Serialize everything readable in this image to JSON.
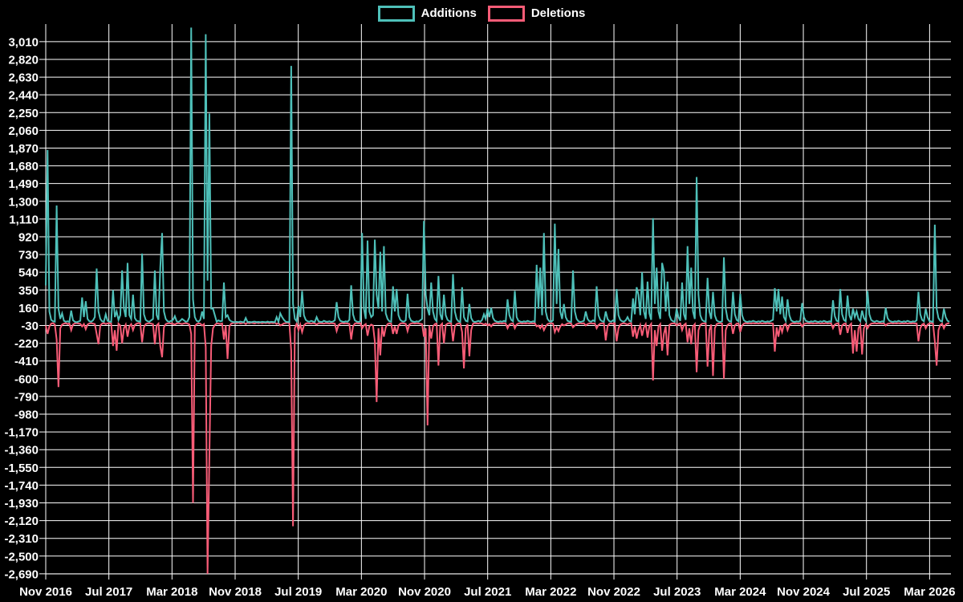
{
  "page": {
    "background": "#000000",
    "grid_color": "#ffffff",
    "text_color": "#ffffff"
  },
  "legend": {
    "items": [
      {
        "label": "Additions",
        "color": "#4ec0b9"
      },
      {
        "label": "Deletions",
        "color": "#f85c77"
      }
    ]
  },
  "chart_data": {
    "type": "line",
    "title": "",
    "xlabel": "",
    "ylabel": "",
    "x_range": [
      "Nov 2016",
      "Mar 2026"
    ],
    "x_resolution": "weekly",
    "ylim": [
      -2690,
      3160
    ],
    "grid": true,
    "legend_position": "top-center",
    "x_tick_labels": [
      "Nov 2016",
      "Jul 2017",
      "Mar 2018",
      "Nov 2018",
      "Jul 2019",
      "Mar 2020",
      "Nov 2020",
      "Jul 2021",
      "Mar 2022",
      "Nov 2022",
      "Jul 2023",
      "Mar 2024",
      "Nov 2024",
      "Jul 2025",
      "Mar 2026"
    ],
    "y_ticks": [
      3010,
      2820,
      2630,
      2440,
      2250,
      2060,
      1870,
      1680,
      1490,
      1300,
      1110,
      920,
      730,
      540,
      350,
      160,
      -30,
      -220,
      -410,
      -600,
      -790,
      -980,
      -1170,
      -1360,
      -1550,
      -1740,
      -1930,
      -2120,
      -2310,
      -2500,
      -2690
    ],
    "y_tick_labels": [
      "3,010",
      "2,820",
      "2,630",
      "2,440",
      "2,250",
      "2,060",
      "1,870",
      "1,680",
      "1,490",
      "1,300",
      "1,110",
      "920",
      "730",
      "540",
      "350",
      "160",
      "-30",
      "-220",
      "-410",
      "-600",
      "-790",
      "-980",
      "-1,170",
      "-1,360",
      "-1,550",
      "-1,740",
      "-1,930",
      "-2,120",
      "-2,310",
      "-2,500",
      "-2,690"
    ],
    "series": [
      {
        "name": "Additions",
        "color": "#4ec0b9",
        "values": [
          400,
          1850,
          120,
          30,
          15,
          10,
          1255,
          150,
          40,
          100,
          20,
          10,
          15,
          8,
          130,
          25,
          10,
          5,
          12,
          20,
          270,
          60,
          230,
          40,
          15,
          10,
          25,
          60,
          580,
          120,
          40,
          15,
          10,
          90,
          20,
          12,
          8,
          350,
          60,
          120,
          30,
          80,
          560,
          150,
          60,
          640,
          80,
          40,
          300,
          50,
          20,
          15,
          10,
          740,
          90,
          30,
          15,
          10,
          25,
          40,
          560,
          80,
          30,
          590,
          960,
          120,
          40,
          15,
          10,
          20,
          30,
          70,
          15,
          8,
          20,
          40,
          25,
          10,
          15,
          60,
          3160,
          250,
          60,
          20,
          10,
          30,
          120,
          40,
          3090,
          450,
          2240,
          150,
          150,
          80,
          10,
          25,
          15,
          20,
          430,
          60,
          80,
          30,
          15,
          8,
          5,
          10,
          6,
          12,
          8,
          5,
          50,
          6,
          8,
          5,
          10,
          12,
          6,
          8,
          5,
          10,
          8,
          5,
          12,
          6,
          10,
          8,
          5,
          60,
          10,
          100,
          60,
          30,
          10,
          8,
          6,
          2750,
          200,
          40,
          15,
          180,
          60,
          340,
          80,
          30,
          15,
          10,
          20,
          12,
          8,
          60,
          15,
          10,
          8,
          20,
          12,
          10,
          15,
          8,
          12,
          25,
          220,
          60,
          20,
          12,
          8,
          15,
          10,
          30,
          400,
          90,
          25,
          12,
          8,
          15,
          960,
          150,
          40,
          880,
          120,
          60,
          80,
          890,
          300,
          150,
          760,
          120,
          820,
          100,
          40,
          15,
          10,
          390,
          120,
          360,
          80,
          30,
          15,
          10,
          25,
          310,
          60,
          20,
          12,
          8,
          15,
          10,
          25,
          40,
          1090,
          300,
          150,
          80,
          430,
          120,
          40,
          15,
          500,
          90,
          30,
          300,
          80,
          30,
          15,
          10,
          520,
          120,
          40,
          15,
          8,
          380,
          60,
          20,
          12,
          200,
          50,
          15,
          8,
          12,
          20,
          10,
          30,
          90,
          40,
          150,
          60,
          160,
          50,
          20,
          12,
          8,
          15,
          10,
          20,
          12,
          250,
          80,
          30,
          15,
          340,
          60,
          20,
          12,
          8,
          15,
          10,
          20,
          12,
          8,
          15,
          10,
          620,
          150,
          590,
          80,
          960,
          120,
          40,
          15,
          10,
          25,
          1060,
          200,
          790,
          120,
          40,
          200,
          60,
          20,
          12,
          8,
          560,
          120,
          40,
          15,
          8,
          12,
          20,
          120,
          40,
          15,
          10,
          25,
          15,
          390,
          80,
          30,
          15,
          10,
          120,
          40,
          15,
          10,
          25,
          15,
          360,
          80,
          30,
          15,
          10,
          25,
          60,
          20,
          12,
          260,
          90,
          380,
          300,
          80,
          540,
          120,
          40,
          440,
          100,
          30,
          1120,
          200,
          590,
          120,
          40,
          640,
          550,
          120,
          440,
          80,
          30,
          15,
          10,
          150,
          60,
          20,
          430,
          90,
          30,
          820,
          200,
          590,
          120,
          40,
          1560,
          300,
          80,
          30,
          15,
          10,
          480,
          120,
          40,
          330,
          80,
          25,
          12,
          8,
          15,
          700,
          150,
          40,
          15,
          10,
          330,
          90,
          30,
          15,
          310,
          80,
          25,
          12,
          8,
          15,
          10,
          20,
          12,
          8,
          15,
          10,
          20,
          12,
          8,
          15,
          10,
          20,
          30,
          370,
          120,
          360,
          90,
          280,
          60,
          20,
          250,
          80,
          25,
          12,
          8,
          15,
          10,
          20,
          210,
          60,
          20,
          12,
          8,
          15,
          10,
          20,
          12,
          8,
          15,
          10,
          20,
          12,
          8,
          15,
          10,
          240,
          70,
          20,
          12,
          360,
          90,
          30,
          15,
          290,
          80,
          25,
          150,
          60,
          120,
          40,
          15,
          130,
          50,
          20,
          340,
          90,
          30,
          15,
          10,
          20,
          12,
          8,
          15,
          10,
          160,
          50,
          20,
          12,
          8,
          15,
          10,
          20,
          12,
          8,
          15,
          10,
          20,
          12,
          8,
          15,
          10,
          25,
          330,
          90,
          30,
          15,
          150,
          60,
          20,
          12,
          8,
          1050,
          150,
          50,
          20,
          12,
          150,
          60,
          20,
          10
        ]
      },
      {
        "name": "Deletions",
        "color": "#f85c77",
        "values": [
          -30,
          -120,
          -40,
          -10,
          -5,
          -20,
          -180,
          -690,
          -60,
          -20,
          -10,
          -5,
          -15,
          -8,
          -80,
          -20,
          -8,
          -5,
          -10,
          -12,
          -40,
          -15,
          -70,
          -20,
          -8,
          -5,
          -10,
          -15,
          -120,
          -230,
          -30,
          -10,
          -5,
          -15,
          -8,
          -5,
          -10,
          -250,
          -80,
          -300,
          -10,
          -30,
          -220,
          -60,
          -20,
          -150,
          -40,
          -15,
          -80,
          -25,
          -10,
          -5,
          -8,
          -210,
          -50,
          -15,
          -8,
          -5,
          -10,
          -15,
          -230,
          -30,
          -10,
          -250,
          -370,
          -50,
          -15,
          -8,
          -5,
          -10,
          -12,
          -20,
          -8,
          -5,
          -10,
          -15,
          -8,
          -5,
          -10,
          -20,
          -120,
          -1930,
          -40,
          -15,
          -8,
          -10,
          -30,
          -15,
          -260,
          -2690,
          -1430,
          -250,
          -60,
          -25,
          -8,
          -10,
          -15,
          -8,
          -180,
          -30,
          -390,
          -40,
          -10,
          -5,
          0,
          -6,
          0,
          -8,
          -4,
          0,
          -15,
          0,
          -6,
          0,
          -4,
          -8,
          0,
          -5,
          0,
          -6,
          0,
          -4,
          0,
          -6,
          0,
          -5,
          0,
          -15,
          -4,
          -30,
          -20,
          -8,
          -5,
          0,
          -6,
          -300,
          -2180,
          -60,
          -10,
          -80,
          -20,
          -100,
          -30,
          -10,
          -5,
          -8,
          -10,
          -5,
          -8,
          -20,
          -6,
          -5,
          -8,
          -10,
          -5,
          -6,
          -10,
          -5,
          -8,
          -10,
          -90,
          -25,
          -10,
          -5,
          -8,
          -6,
          -10,
          -12,
          -180,
          -40,
          -10,
          -5,
          -8,
          -6,
          -60,
          -30,
          -15,
          -140,
          -40,
          -20,
          -30,
          -200,
          -850,
          -60,
          -350,
          -40,
          -150,
          -50,
          -15,
          -8,
          -10,
          -120,
          -40,
          -120,
          -30,
          -10,
          -5,
          -8,
          -12,
          -90,
          -20,
          -8,
          -5,
          -10,
          -6,
          -8,
          -12,
          -15,
          -150,
          -60,
          -1100,
          -30,
          -170,
          -40,
          -15,
          -8,
          -460,
          -30,
          -10,
          -220,
          -25,
          -10,
          -5,
          -8,
          -200,
          -40,
          -15,
          -8,
          -5,
          -100,
          -490,
          -60,
          -15,
          -360,
          -80,
          -10,
          -5,
          -8,
          -10,
          -5,
          -10,
          -20,
          -10,
          -30,
          -15,
          -40,
          -15,
          -8,
          -5,
          -10,
          -6,
          -8,
          -5,
          -10,
          -60,
          -20,
          -10,
          -8,
          -60,
          -20,
          -8,
          -5,
          -10,
          -6,
          -8,
          -5,
          -10,
          -6,
          -8,
          -5,
          -40,
          -30,
          -60,
          -25,
          -80,
          -40,
          -15,
          -8,
          -5,
          -10,
          -100,
          -50,
          -90,
          -40,
          -15,
          -30,
          -20,
          -8,
          -5,
          -10,
          -50,
          -30,
          -15,
          -8,
          -5,
          -10,
          -6,
          -30,
          -15,
          -8,
          -6,
          -10,
          -8,
          -60,
          -25,
          -10,
          -8,
          -5,
          -190,
          -40,
          -10,
          -8,
          -12,
          -6,
          -200,
          -60,
          -20,
          -10,
          -5,
          -12,
          -20,
          -8,
          -5,
          -150,
          -40,
          -170,
          -80,
          -25,
          -140,
          -50,
          -15,
          -160,
          -40,
          -12,
          -620,
          -80,
          -250,
          -40,
          -15,
          -300,
          -120,
          -40,
          -350,
          -25,
          -10,
          -8,
          -5,
          -30,
          -15,
          -8,
          -80,
          -25,
          -10,
          -210,
          -60,
          -230,
          -40,
          -15,
          -530,
          -80,
          -25,
          -10,
          -8,
          -5,
          -470,
          -80,
          -20,
          -570,
          -60,
          -15,
          -8,
          -5,
          -10,
          -600,
          -80,
          -25,
          -10,
          -8,
          -120,
          -30,
          -10,
          -8,
          -100,
          -30,
          -10,
          -5,
          -8,
          -6,
          -10,
          -5,
          -8,
          -6,
          -10,
          -5,
          -8,
          -6,
          -10,
          -5,
          -8,
          -6,
          -10,
          -310,
          -50,
          -150,
          -30,
          -100,
          -25,
          -10,
          -80,
          -25,
          -10,
          -5,
          -8,
          -6,
          -10,
          -5,
          -40,
          -15,
          -8,
          -5,
          -8,
          -5,
          -10,
          -6,
          -8,
          -5,
          -10,
          -6,
          -8,
          -5,
          -10,
          -6,
          -8,
          -60,
          -20,
          -10,
          -5,
          -130,
          -30,
          -12,
          -8,
          -110,
          -30,
          -10,
          -330,
          -80,
          -310,
          -60,
          -20,
          -340,
          -60,
          -20,
          -60,
          -25,
          -10,
          -8,
          -5,
          -10,
          -6,
          -8,
          -10,
          -6,
          -30,
          -12,
          -8,
          -5,
          -10,
          -6,
          -8,
          -5,
          -10,
          -6,
          -8,
          -5,
          -10,
          -6,
          -8,
          -5,
          -10,
          -8,
          -200,
          -60,
          -20,
          -10,
          -60,
          -20,
          -10,
          -5,
          -8,
          -200,
          -460,
          -80,
          -25,
          -10,
          -60,
          -20,
          -8,
          -5
        ]
      }
    ]
  }
}
